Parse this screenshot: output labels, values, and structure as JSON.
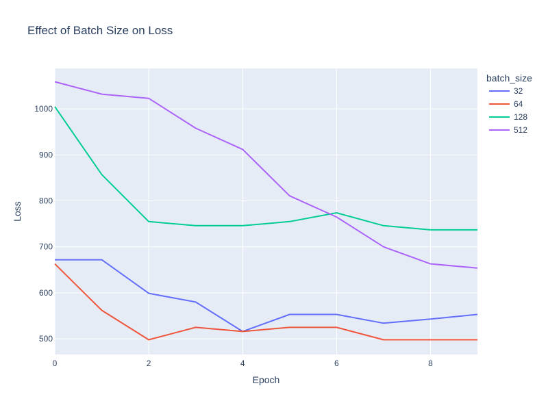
{
  "chart_data": {
    "type": "line",
    "title": "Effect of Batch Size on Loss",
    "xlabel": "Epoch",
    "ylabel": "Loss",
    "x": [
      0,
      1,
      2,
      3,
      4,
      5,
      6,
      7,
      8,
      9
    ],
    "xlim": [
      0,
      9
    ],
    "ylim": [
      466,
      1088
    ],
    "xticks": [
      0,
      2,
      4,
      6,
      8
    ],
    "xtick_labels": [
      "0",
      "2",
      "4",
      "6",
      "8"
    ],
    "yticks": [
      500,
      600,
      700,
      800,
      900,
      1000
    ],
    "ytick_labels": [
      "500",
      "600",
      "700",
      "800",
      "900",
      "1000"
    ],
    "legend_title": "batch_size",
    "legend_position": "top-right outside",
    "grid": true,
    "series": [
      {
        "name": "32",
        "color": "#636efa",
        "values": [
          672,
          672,
          599,
          580,
          516,
          553,
          553,
          534,
          543,
          553
        ]
      },
      {
        "name": "64",
        "color": "#ef553b",
        "values": [
          663,
          562,
          498,
          525,
          516,
          525,
          525,
          498,
          498,
          498
        ]
      },
      {
        "name": "128",
        "color": "#00cc96",
        "values": [
          1005,
          857,
          755,
          746,
          746,
          755,
          774,
          746,
          737,
          737
        ]
      },
      {
        "name": "512",
        "color": "#ab63fa",
        "values": [
          1059,
          1032,
          1023,
          958,
          912,
          811,
          765,
          700,
          663,
          654
        ]
      }
    ]
  }
}
